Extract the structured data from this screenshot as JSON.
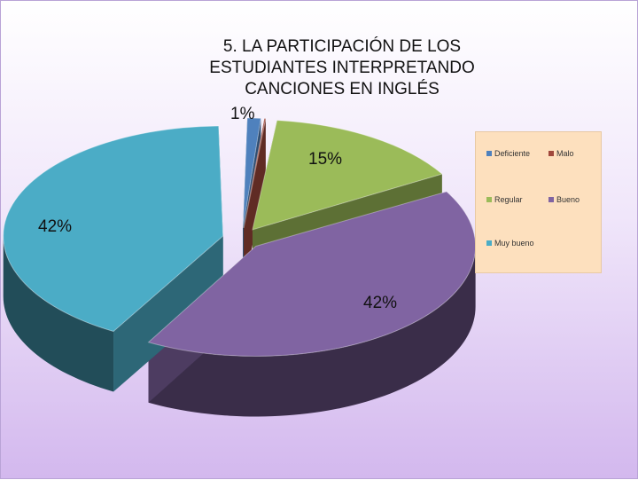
{
  "chart_data": {
    "type": "pie",
    "title_lines": [
      "5. LA PARTICIPACIÓN DE LOS",
      "ESTUDIANTES INTERPRETANDO",
      "CANCIONES EN INGLÉS"
    ],
    "slices": [
      {
        "name": "Deficiente",
        "value": 1,
        "label": "1%",
        "color": "#4f81bd"
      },
      {
        "name": "Malo",
        "value": 0,
        "label": "",
        "color": "#a0483c"
      },
      {
        "name": "Regular",
        "value": 15,
        "label": "15%",
        "color": "#9bbb59"
      },
      {
        "name": "Bueno",
        "value": 42,
        "label": "42%",
        "color": "#8064a2"
      },
      {
        "name": "Muy bueno",
        "value": 42,
        "label": "42%",
        "color": "#4bacc6"
      }
    ],
    "legend_position": "right"
  }
}
